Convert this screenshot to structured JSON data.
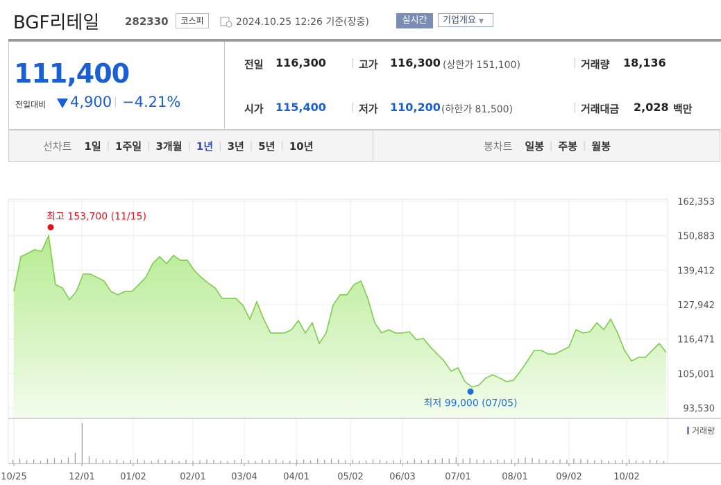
{
  "header": {
    "title": "BGF리테일",
    "code": "282330",
    "market": "코스피",
    "timestamp": "2024.10.25 12:26 기준(장중)",
    "realtime_button": "실시간",
    "company_button": "기업개요"
  },
  "price": {
    "current": "111,400",
    "change_label": "전일대비",
    "change": "4,900",
    "change_rate": "−4.21%"
  },
  "summary": [
    [
      {
        "label": "전일",
        "value": "116,300"
      },
      {
        "label": "고가",
        "value": "116,300",
        "note": "(상한가 151,100)"
      },
      {
        "label": "거래량",
        "value": "18,136"
      }
    ],
    [
      {
        "label": "시가",
        "value": "115,400"
      },
      {
        "label": "저가",
        "value": "110,200",
        "note": "(하한가 81,500)"
      },
      {
        "label": "거래대금",
        "value": "2,028",
        "unit": "백만"
      }
    ]
  ],
  "tabs": {
    "line_label": "선차트",
    "line_options": [
      "1일",
      "1주일",
      "3개월",
      "1년",
      "3년",
      "5년",
      "10년"
    ],
    "active": "1년",
    "candle_label": "봉차트",
    "candle_options": [
      "일봉",
      "주봉",
      "월봉"
    ]
  },
  "chart_data": {
    "type": "area",
    "series": [
      {
        "color": "#7dcc4c",
        "values": [
          132300,
          143900,
          145000,
          146200,
          145700,
          150800,
          134600,
          133500,
          129600,
          132300,
          138100,
          138100,
          137000,
          135800,
          132300,
          131200,
          132300,
          132300,
          134600,
          137000,
          141600,
          143900,
          141600,
          144300,
          142700,
          142700,
          139300,
          137000,
          135100,
          133500,
          130000,
          130000,
          130000,
          127700,
          123100,
          128900,
          123100,
          118500,
          118500,
          118500,
          119600,
          122600,
          118500,
          121900,
          115000,
          118500,
          127700,
          131200,
          131200,
          134600,
          135800,
          130000,
          121900,
          118500,
          119600,
          118500,
          118500,
          118900,
          116200,
          116700,
          113900,
          111500,
          109200,
          105800,
          106900,
          102300,
          100500,
          101100,
          103500,
          104600,
          103500,
          102300,
          102800,
          105800,
          109200,
          112700,
          112700,
          111500,
          111500,
          112700,
          113900,
          119600,
          118500,
          118900,
          121900,
          119600,
          123100,
          118500,
          112700,
          109200,
          110400,
          110400,
          112700,
          115000,
          112000
        ]
      }
    ],
    "xlim": [
      0,
      94
    ],
    "xticks": [
      {
        "value": 0,
        "label": "10/25"
      },
      {
        "value": 9.8,
        "label": "12/01"
      },
      {
        "value": 17.2,
        "label": "01/02"
      },
      {
        "value": 25.8,
        "label": "02/01"
      },
      {
        "value": 33.2,
        "label": "03/04"
      },
      {
        "value": 40.7,
        "label": "04/01"
      },
      {
        "value": 48.5,
        "label": "05/02"
      },
      {
        "value": 56,
        "label": "06/03"
      },
      {
        "value": 64,
        "label": "07/01"
      },
      {
        "value": 72.2,
        "label": "08/01"
      },
      {
        "value": 80,
        "label": "09/02"
      },
      {
        "value": 88.3,
        "label": "10/02"
      }
    ],
    "ylim": [
      90066,
      163046
    ],
    "yticks": [
      {
        "value": 93530,
        "label": "93,530"
      },
      {
        "value": 105001,
        "label": "105,001"
      },
      {
        "value": 116471,
        "label": "116,471"
      },
      {
        "value": 127942,
        "label": "127,942"
      },
      {
        "value": 139412,
        "label": "139,412"
      },
      {
        "value": 150883,
        "label": "150,883"
      },
      {
        "value": 162353,
        "label": "162,353"
      }
    ],
    "grid": true,
    "annotations": [
      {
        "label": "최고 153,700 (11/15)",
        "value": 153700,
        "x": 5.3,
        "color": "#e8101d"
      },
      {
        "label": "최저 99,000 (07/05)",
        "value": 99000,
        "x": 65.8,
        "color": "#1e6fd9"
      }
    ],
    "volume": {
      "label": "거래량",
      "color": "#9a9a9a",
      "ylim": [
        0,
        1100000
      ],
      "values": [
        90000,
        120000,
        80000,
        100000,
        70000,
        110000,
        130000,
        90000,
        150000,
        260000,
        1000000,
        180000,
        120000,
        90000,
        80000,
        100000,
        70000,
        90000,
        110000,
        80000,
        70000,
        100000,
        90000,
        80000,
        60000,
        90000,
        70000,
        80000,
        100000,
        90000,
        70000,
        60000,
        90000,
        120000,
        80000,
        70000,
        100000,
        90000,
        110000,
        80000,
        70000,
        90000,
        100000,
        80000,
        120000,
        90000,
        110000,
        100000,
        80000,
        90000,
        70000,
        80000,
        100000,
        90000,
        70000,
        80000,
        90000,
        70000,
        110000,
        80000,
        90000,
        100000,
        130000,
        120000,
        150000,
        110000,
        140000,
        100000,
        90000,
        80000,
        100000,
        90000,
        110000,
        120000,
        150000,
        140000,
        110000,
        90000,
        80000,
        100000,
        90000,
        120000,
        110000,
        100000,
        80000,
        90000,
        70000,
        80000,
        90000,
        100000,
        80000,
        70000,
        90000,
        80000,
        60000
      ]
    }
  }
}
